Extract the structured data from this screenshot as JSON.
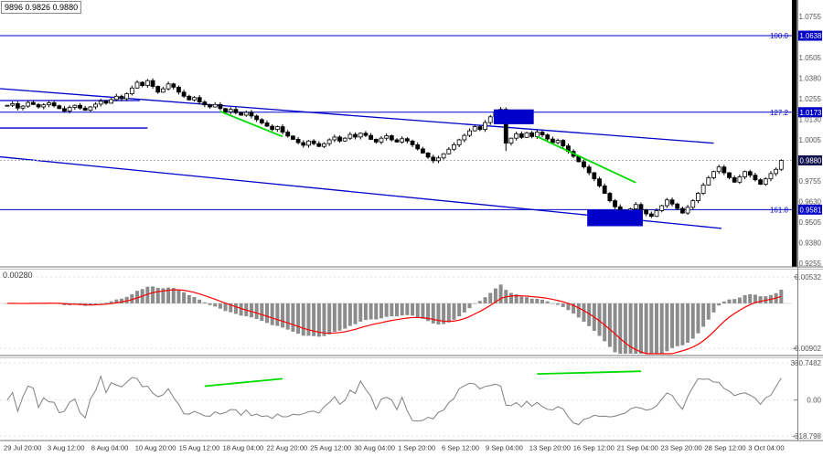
{
  "chart_data": {
    "type": "candlestick",
    "info_label": "9896 0.9826 0.9880",
    "x_labels": [
      "29 Jul 20:00",
      "3 Aug 12:00",
      "8 Aug 04:00",
      "10 Aug 20:00",
      "15 Aug 12:00",
      "18 Aug 04:00",
      "22 Aug 20:00",
      "25 Aug 12:00",
      "30 Aug 04:00",
      "1 Sep 20:00",
      "6 Sep 12:00",
      "9 Sep 04:00",
      "13 Sep 20:00",
      "16 Sep 12:00",
      "21 Sep 04:00",
      "23 Sep 20:00",
      "28 Sep 12:00",
      "3 Oct 04:00"
    ],
    "price_panel": {
      "range": [
        0.9255,
        1.0755
      ],
      "y_ticks": [
        "1.0755",
        "1.0630",
        "1.0505",
        "1.0380",
        "1.0255",
        "1.0130",
        "1.0005",
        "0.9880",
        "0.9755",
        "0.9630",
        "0.9505",
        "0.9380",
        "0.9255"
      ],
      "current_price": "0.9880",
      "price_line": 0.988,
      "closes": [
        1.0215,
        1.0225,
        1.0198,
        1.021,
        1.0232,
        1.022,
        1.0205,
        1.0218,
        1.023,
        1.0212,
        1.0195,
        1.018,
        1.0202,
        1.0215,
        1.0198,
        1.0185,
        1.0205,
        1.0222,
        1.024,
        1.0228,
        1.025,
        1.027,
        1.0255,
        1.0285,
        1.032,
        1.0355,
        1.0335,
        1.0365,
        1.033,
        1.0295,
        1.0315,
        1.0345,
        1.0325,
        1.0295,
        1.027,
        1.0248,
        1.0262,
        1.0235,
        1.0218,
        1.0205,
        1.022,
        1.0195,
        1.0175,
        1.019,
        1.017,
        1.0155,
        1.0172,
        1.015,
        1.0128,
        1.0108,
        1.0088,
        1.0068,
        1.0085,
        1.0052,
        1.0028,
        1.0008,
        0.9988,
        0.9972,
        0.9998,
        0.9982,
        0.9965,
        0.9982,
        1.0005,
        1.0022,
        0.9998,
        1.0015,
        1.0038,
        1.0022,
        1.0045,
        1.0032,
        1.0008,
        0.9992,
        1.0015,
        1.003,
        1.0005,
        0.9992,
        1.0012,
        0.9998,
        0.9975,
        0.995,
        0.9925,
        0.99,
        0.9878,
        0.9895,
        0.992,
        0.9948,
        0.9975,
        1.0005,
        1.0032,
        1.006,
        1.0085,
        1.0068,
        1.011,
        1.0145,
        1.0175,
        1.019,
        0.9985,
        1.0015,
        1.0042,
        1.002,
        1.0048,
        1.0025,
        1.0052,
        1.0035,
        1.001,
        0.9988,
        1.0002,
        0.9968,
        0.9935,
        0.9905,
        0.9872,
        0.984,
        0.9805,
        0.9768,
        0.9725,
        0.968,
        0.9635,
        0.9598,
        0.957,
        0.9548,
        0.9585,
        0.9612,
        0.958,
        0.9555,
        0.954,
        0.9575,
        0.9605,
        0.964,
        0.9615,
        0.9588,
        0.956,
        0.9595,
        0.9635,
        0.968,
        0.973,
        0.9775,
        0.9812,
        0.984,
        0.9805,
        0.9775,
        0.9748,
        0.978,
        0.9812,
        0.979,
        0.9762,
        0.9735,
        0.9768,
        0.98,
        0.9826,
        0.988
      ],
      "wick_overrides": {
        "27": {
          "high": 1.0375
        },
        "96": {
          "low": 0.9938
        }
      },
      "fib_levels": [
        {
          "label": "100.0",
          "price": 1.0638,
          "tag": "1.0638"
        },
        {
          "label": "127.2",
          "price": 1.0173,
          "tag": "1.0173"
        },
        {
          "label": "161.8",
          "price": 0.9581,
          "tag": "0.9581"
        }
      ],
      "trendlines": [
        {
          "i1": -1.4,
          "p1": 1.0316,
          "i2": 136,
          "p2": 0.9985
        },
        {
          "i1": -1.4,
          "p1": 0.9902,
          "i2": 137.5,
          "p2": 0.9467
        }
      ],
      "h_segments": [
        {
          "price": 1.0244,
          "i2": 25.5
        },
        {
          "price": 1.0077,
          "i2": 27
        }
      ],
      "green_lines": [
        {
          "i1": 41,
          "p1": 1.0178,
          "i2": 53,
          "p2": 1.0025
        },
        {
          "i1": 102,
          "p1": 1.0025,
          "i2": 121,
          "p2": 0.9745
        }
      ],
      "boxes": [
        {
          "i1": 94,
          "i2": 101,
          "p1": 1.01,
          "p2": 1.019
        },
        {
          "i1": 112,
          "i2": 122,
          "p1": 0.948,
          "p2": 0.958
        }
      ]
    },
    "macd_panel": {
      "label": "0.00280",
      "max": 0.00532,
      "min": -0.00902,
      "y_ticks": [
        "0.00532",
        "-0.00902"
      ]
    },
    "cci_panel": {
      "max": 330.7482,
      "min": -318.798,
      "y_ticks": [
        "330.7482",
        "0.00",
        "-318.798"
      ],
      "green_lines": [
        {
          "i1": 38,
          "v1": 124,
          "i2": 53,
          "v2": 190
        },
        {
          "i1": 102,
          "v1": 232,
          "i2": 122,
          "v2": 256
        }
      ]
    },
    "colors": {
      "blue": "#0000C8",
      "green": "#00DC00",
      "red": "#FF0000",
      "histogram": "#8C8C8C",
      "cci": "#808080",
      "tag_dark": "#12124E",
      "axis_text": "#555555"
    }
  }
}
